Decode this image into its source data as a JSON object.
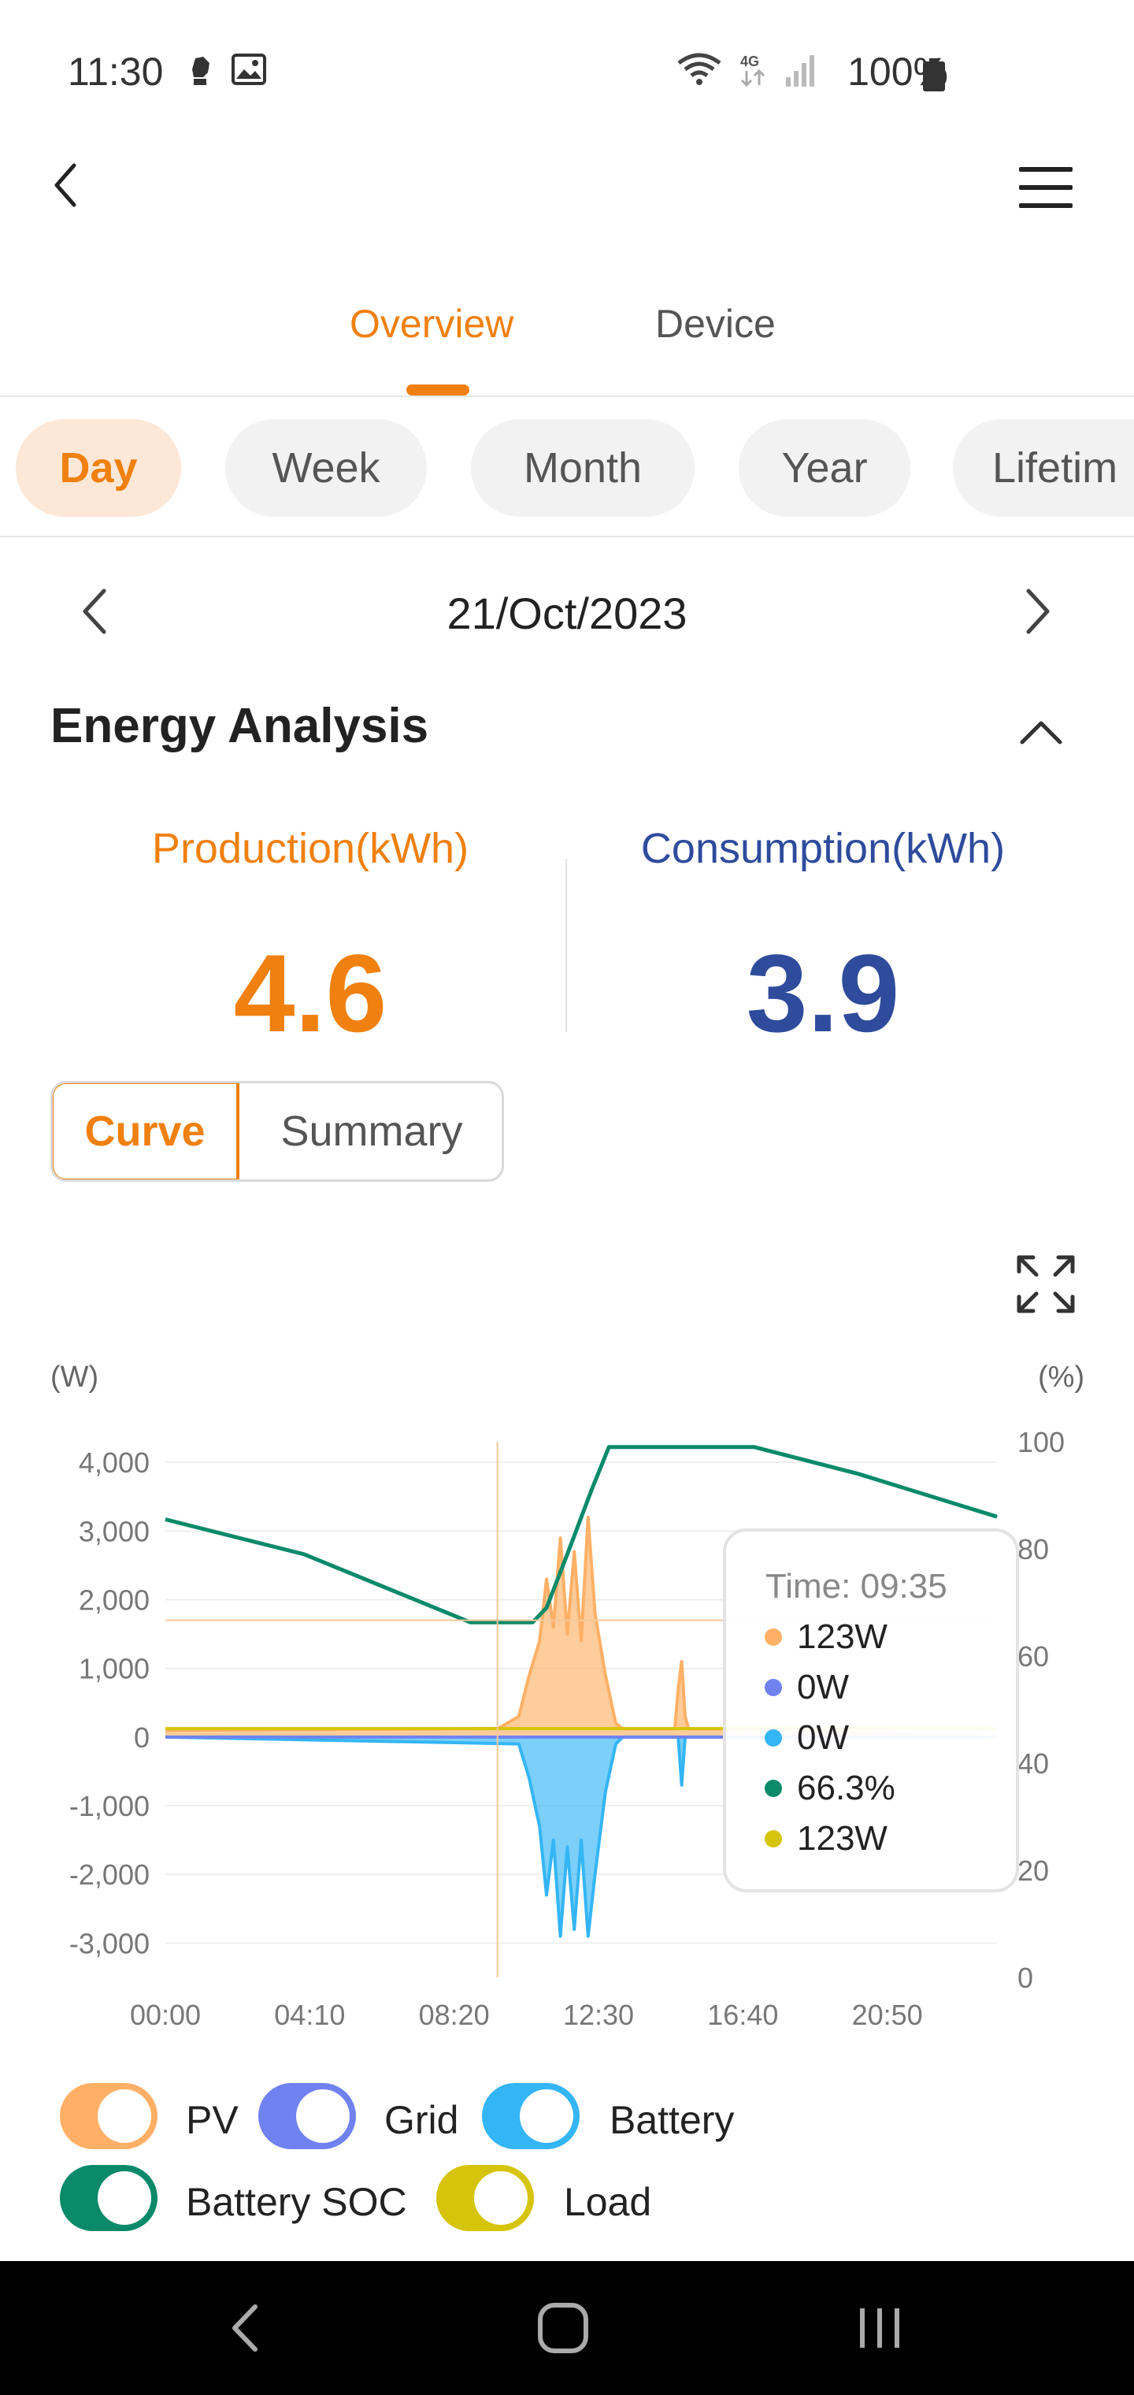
{
  "status_bar": {
    "time": "11:30",
    "battery": "100%",
    "network": "4G"
  },
  "header": {
    "back_icon": "chevron-left-icon",
    "menu_icon": "hamburger-menu-icon"
  },
  "tabs": [
    {
      "label": "Overview",
      "active": true
    },
    {
      "label": "Device",
      "active": false
    }
  ],
  "periods": [
    {
      "label": "Day",
      "active": true
    },
    {
      "label": "Week",
      "active": false
    },
    {
      "label": "Month",
      "active": false
    },
    {
      "label": "Year",
      "active": false
    },
    {
      "label": "Lifetim",
      "active": false
    }
  ],
  "date": {
    "value": "21/Oct/2023"
  },
  "energy_analysis": {
    "title": "Energy Analysis",
    "production_label": "Production(kWh)",
    "production_value": "4.6",
    "consumption_label": "Consumption(kWh)",
    "consumption_value": "3.9"
  },
  "view_toggle": {
    "curve": "Curve",
    "summary": "Summary"
  },
  "colors": {
    "accent": "#f0800f",
    "consumption": "#2e4b9c",
    "pv": "#ffb066",
    "grid": "#6f82f0",
    "battery": "#34b5f5",
    "battery_soc": "#0b8a6a",
    "load": "#d6c40a"
  },
  "chart_data": {
    "type": "line",
    "left_axis_unit": "(W)",
    "right_axis_unit": "(%)",
    "ylim": [
      -3500,
      4300
    ],
    "y2lim": [
      0,
      100
    ],
    "y_ticks": [
      "4,000",
      "3,000",
      "2,000",
      "1,000",
      "0",
      "-1,000",
      "-2,000",
      "-3,000"
    ],
    "y_tick_values": [
      4000,
      3000,
      2000,
      1000,
      0,
      -1000,
      -2000,
      -3000
    ],
    "y2_ticks": [
      "100",
      "80",
      "60",
      "40",
      "20",
      "0"
    ],
    "y2_tick_values": [
      100,
      80,
      60,
      40,
      20,
      0
    ],
    "x_ticks": [
      "00:00",
      "04:10",
      "08:20",
      "12:30",
      "16:40",
      "20:50"
    ],
    "x_tick_hours": [
      0,
      4.1667,
      8.3333,
      12.5,
      16.6667,
      20.8333
    ],
    "x_range_hours": [
      0,
      24
    ],
    "series": [
      {
        "name": "PV",
        "axis": "left",
        "x": [
          0,
          9.6,
          10.2,
          10.5,
          10.8,
          11.0,
          11.2,
          11.4,
          11.6,
          11.8,
          12.0,
          12.2,
          12.4,
          12.7,
          13.0,
          13.2,
          14.7,
          14.8,
          14.9,
          15.0,
          15.1,
          16.5,
          24
        ],
        "y": [
          100,
          123,
          300,
          900,
          1400,
          2300,
          1600,
          2900,
          1500,
          2700,
          1400,
          3200,
          1800,
          900,
          200,
          120,
          120,
          700,
          1100,
          300,
          120,
          120,
          0
        ]
      },
      {
        "name": "Grid",
        "axis": "left",
        "x": [
          0,
          24
        ],
        "y": [
          0,
          0
        ]
      },
      {
        "name": "Battery",
        "axis": "left",
        "x": [
          0,
          10.2,
          10.5,
          10.8,
          11.0,
          11.2,
          11.4,
          11.6,
          11.8,
          12.0,
          12.2,
          12.4,
          12.7,
          13.0,
          13.2,
          14.8,
          14.9,
          15.0,
          16.5,
          24
        ],
        "y": [
          0,
          -100,
          -600,
          -1300,
          -2300,
          -1500,
          -2900,
          -1600,
          -2800,
          -1500,
          -2900,
          -2000,
          -800,
          -100,
          0,
          0,
          -700,
          0,
          0,
          0
        ]
      },
      {
        "name": "Battery SOC",
        "axis": "right",
        "x": [
          0,
          4.0,
          8.8,
          10.6,
          11.0,
          11.6,
          12.3,
          12.8,
          15.0,
          17.0,
          20.0,
          23.0,
          24
        ],
        "y": [
          85.5,
          79,
          66.3,
          66.3,
          69,
          79,
          91,
          99,
          99,
          99,
          94,
          88,
          86
        ]
      },
      {
        "name": "Load",
        "axis": "left",
        "x": [
          0,
          24
        ],
        "y": [
          123,
          123
        ]
      }
    ],
    "cursor_hour": 9.5833,
    "cursor_value": 1700,
    "tooltip": {
      "time": "Time: 09:35",
      "rows": [
        {
          "series": "PV",
          "value": "123W"
        },
        {
          "series": "Grid",
          "value": "0W"
        },
        {
          "series": "Battery",
          "value": "0W"
        },
        {
          "series": "Battery SOC",
          "value": "66.3%"
        },
        {
          "series": "Load",
          "value": "123W"
        }
      ]
    }
  },
  "legend": [
    {
      "label": "PV",
      "on": true
    },
    {
      "label": "Grid",
      "on": true
    },
    {
      "label": "Battery",
      "on": true
    },
    {
      "label": "Battery SOC",
      "on": true
    },
    {
      "label": "Load",
      "on": true
    }
  ],
  "nav_bar": {
    "back": "nav-back-icon",
    "home": "nav-home-icon",
    "recents": "nav-recents-icon"
  }
}
